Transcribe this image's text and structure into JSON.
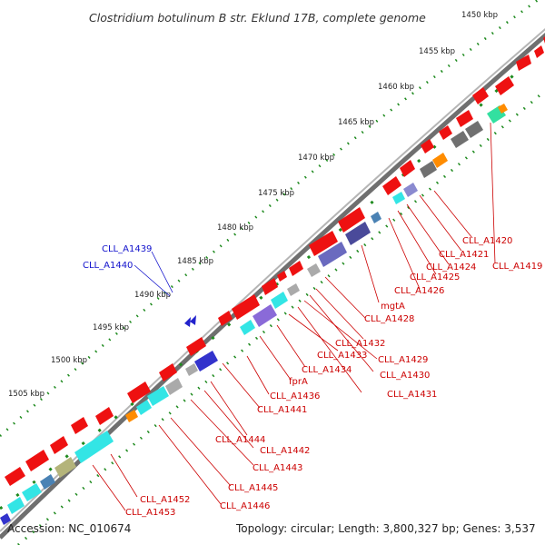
{
  "title": "Clostridium botulinum B str. Eklund 17B, complete genome",
  "footer": {
    "accession": "Accession: NC_010674",
    "summary": "Topology: circular; Length: 3,800,327 bp; Genes: 3,537"
  },
  "colors": {
    "forward_gene": "#ee1111",
    "backbone": "#8a8a8a",
    "tick_dots": "#1e8a1e",
    "gene_label": "#cc0000",
    "rna_label": "#1111cc",
    "cog_cyan": "#33e5e5",
    "cog_indigo": "#4a4a9a",
    "cog_grey": "#707070",
    "cog_orange": "#ff8c00",
    "cog_mint": "#33e0a0",
    "cog_steel": "#4a82b4"
  },
  "ticks": [
    "1450 kbp",
    "1455 kbp",
    "1460 kbp",
    "1465 kbp",
    "1470 kbp",
    "1475 kbp",
    "1480 kbp",
    "1485 kbp",
    "1490 kbp",
    "1495 kbp",
    "1500 kbp",
    "1505 kbp"
  ],
  "blue_labels": [
    "CLL_A1439",
    "CLL_A1440"
  ],
  "red_labels": [
    "CLL_A1420",
    "CLL_A1421",
    "CLL_A1419",
    "CLL_A1424",
    "CLL_A1425",
    "CLL_A1426",
    "mgtA",
    "CLL_A1428",
    "CLL_A1432",
    "CLL_A1433",
    "CLL_A1429",
    "CLL_A1430",
    "CLL_A1434",
    "CLL_A1431",
    "fprA",
    "CLL_A1436",
    "CLL_A1441",
    "CLL_A1444",
    "CLL_A1442",
    "CLL_A1443",
    "CLL_A1445",
    "CLL_A1452",
    "CLL_A1446",
    "CLL_A1453"
  ]
}
